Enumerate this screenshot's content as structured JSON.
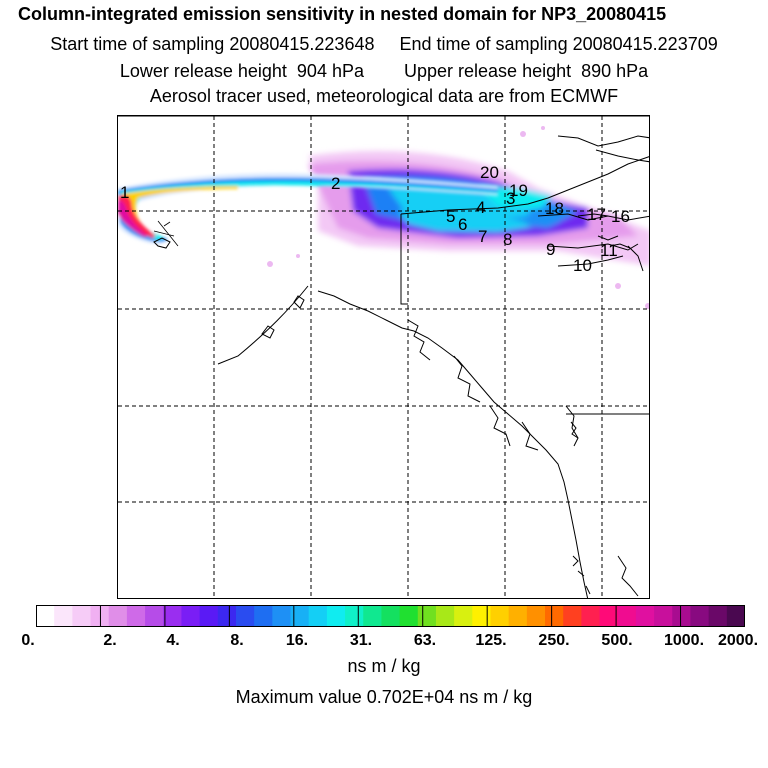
{
  "header": {
    "title": "Column-integrated emission sensitivity in nested domain for NP3_20080415",
    "start_label": "Start time of sampling 20080415.223648",
    "end_label": "End time of sampling 20080415.223709",
    "lower_release": "Lower release height  904 hPa",
    "upper_release": "Upper release height  890 hPa",
    "tracer_info": "Aerosol tracer used, meteorological data are from ECMWF"
  },
  "map": {
    "point_labels": [
      "1",
      "2",
      "3",
      "4",
      "5",
      "6",
      "7",
      "8",
      "9",
      "10",
      "11",
      "16",
      "17",
      "18",
      "19",
      "20"
    ]
  },
  "colorbar": {
    "tick_labels": [
      "0.",
      "2.",
      "4.",
      "8.",
      "16.",
      "31.",
      "63.",
      "125.",
      "250.",
      "500.",
      "1000.",
      "2000."
    ],
    "colors": [
      "#ffffff",
      "#fbe6fb",
      "#f6ccf7",
      "#f0b0f2",
      "#e08ee8",
      "#cf6ae8",
      "#b64ce8",
      "#9a2ef0",
      "#7a1ef5",
      "#5a1af5",
      "#3c28f0",
      "#2a4cf0",
      "#1e6ef2",
      "#1e90f5",
      "#18b0f5",
      "#14cff5",
      "#10ecf0",
      "#10f0c8",
      "#10e890",
      "#14e060",
      "#20e030",
      "#70e020",
      "#a8e818",
      "#d8f010",
      "#fff000",
      "#ffd000",
      "#ffb000",
      "#ff9000",
      "#ff6a00",
      "#ff4020",
      "#ff2050",
      "#ff0a78",
      "#f00c90",
      "#e010a0",
      "#c8109c",
      "#a80c90",
      "#880a80",
      "#6a0868",
      "#4a0850"
    ],
    "units": "ns m / kg",
    "max_value": "Maximum value  0.702E+04 ns m / kg"
  }
}
